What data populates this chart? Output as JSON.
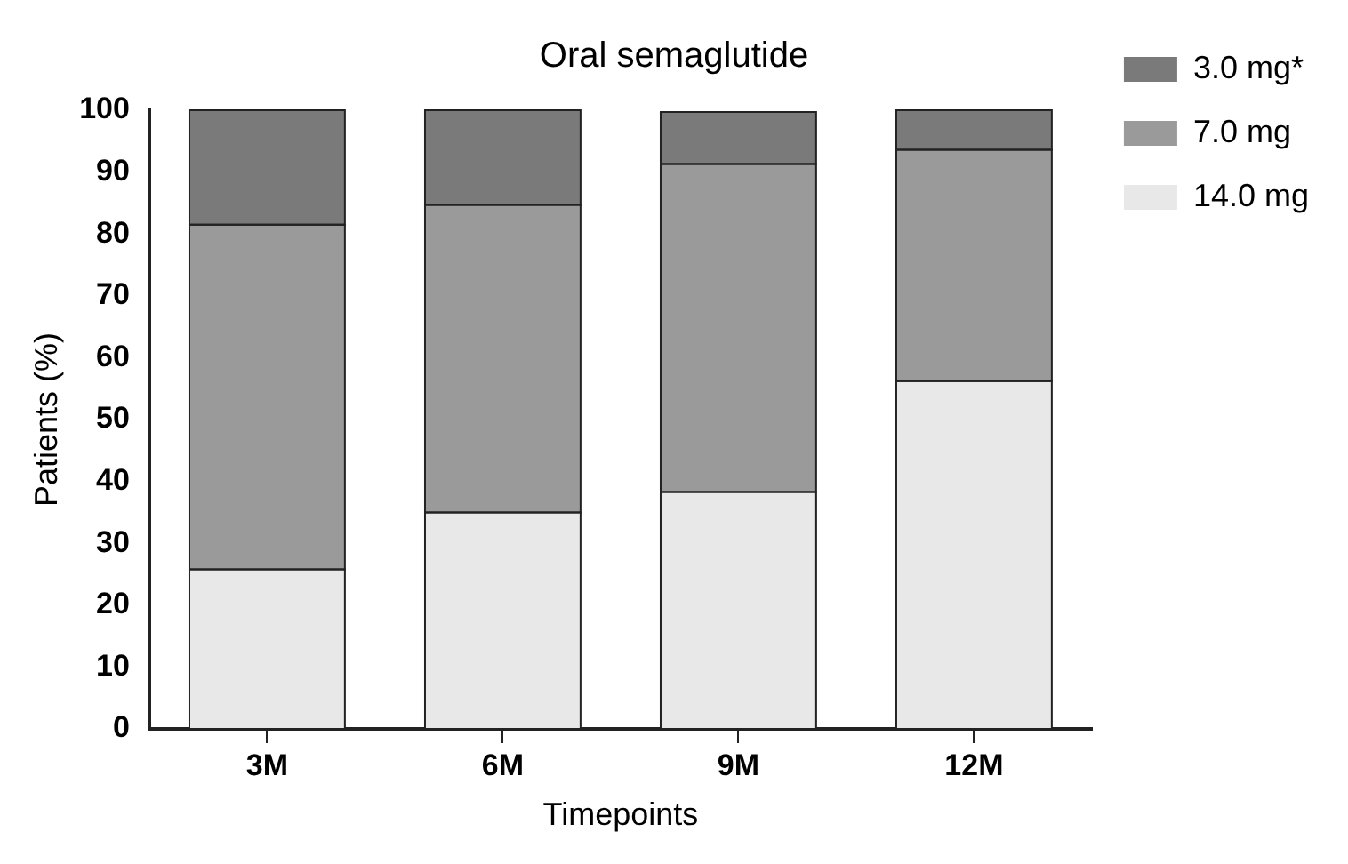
{
  "chart_data": {
    "type": "bar",
    "title": "Oral semaglutide",
    "xlabel": "Timepoints",
    "ylabel": "Patients (%)",
    "categories": [
      "3M",
      "6M",
      "9M",
      "12M"
    ],
    "stacked": true,
    "ylim": [
      0,
      100
    ],
    "yticks": [
      0,
      10,
      20,
      30,
      40,
      50,
      60,
      70,
      80,
      90,
      100
    ],
    "grid": false,
    "legend": "right",
    "series": [
      {
        "name": "14.0 mg",
        "color": "#e8e8e8",
        "values": [
          25.8,
          35,
          38.3,
          56.2
        ]
      },
      {
        "name": "7.0 mg",
        "color": "#9a9a9a",
        "values": [
          55.7,
          49.7,
          53,
          37.4
        ]
      },
      {
        "name": "3.0 mg*",
        "color": "#7a7a7a",
        "values": [
          18.5,
          15.3,
          8.4,
          6.4
        ]
      }
    ]
  }
}
